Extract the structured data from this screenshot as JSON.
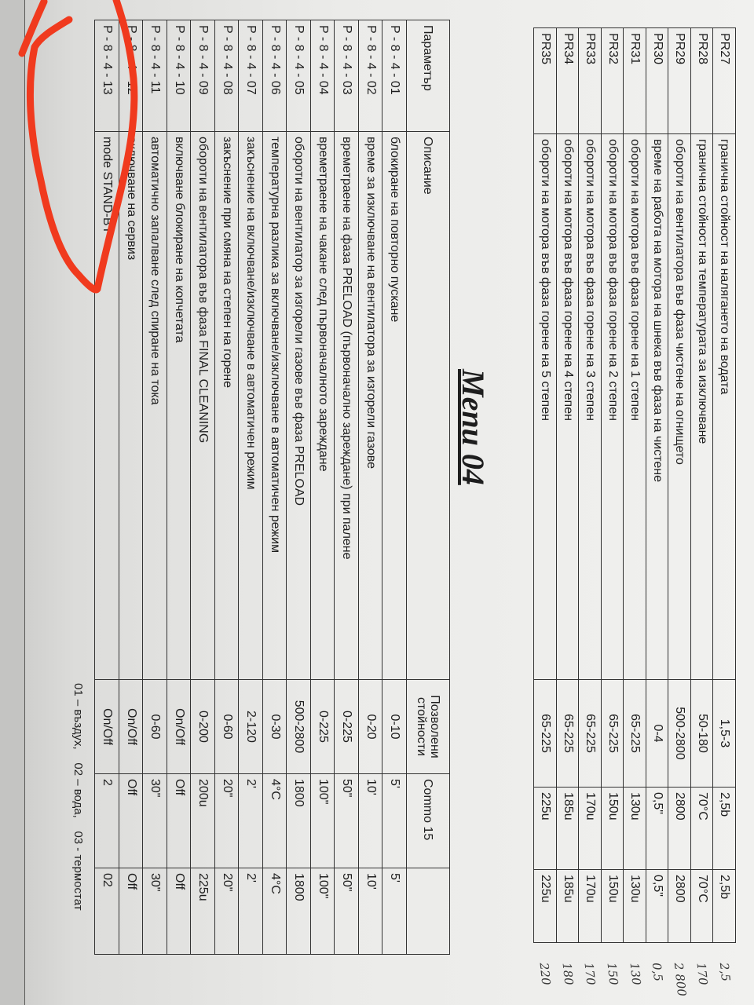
{
  "title": "Menu 04",
  "top_table": {
    "rows": [
      {
        "param": "PR27",
        "description": "гранична стойност на налягането на водата",
        "range": "1,5-3",
        "value1": "2,5b",
        "value2": "2,5b"
      },
      {
        "param": "PR28",
        "description": "гранична стойност на температурата за  изключване",
        "range": "50-180",
        "value1": "70°C",
        "value2": "70°C"
      },
      {
        "param": "PR29",
        "description": "обороти на вентилатора във фаза чистене на огнището",
        "range": "500-2800",
        "value1": "2800",
        "value2": "2800"
      },
      {
        "param": "PR30",
        "description": "време на работа на мотора на шнека във фаза на чистене",
        "range": "0-4",
        "value1": "0,5\"",
        "value2": "0,5\""
      },
      {
        "param": "PR31",
        "description": "обороти на мотора във фаза горене на 1 степен",
        "range": "65-225",
        "value1": "130u",
        "value2": "130u"
      },
      {
        "param": "PR32",
        "description": "обороти на мотора във фаза горене на 2 степен",
        "range": "65-225",
        "value1": "150u",
        "value2": "150u"
      },
      {
        "param": "PR33",
        "description": "обороти на мотора във фаза горене на 3 степен",
        "range": "65-225",
        "value1": "170u",
        "value2": "170u"
      },
      {
        "param": "PR34",
        "description": "обороти на мотора във фаза горене на 4 степен",
        "range": "65-225",
        "value1": "185u",
        "value2": "185u"
      },
      {
        "param": "PR35",
        "description": "обороти на мотора във фаза горене на 5 степен",
        "range": "65-225",
        "value1": "225u",
        "value2": "225u"
      }
    ],
    "handwritten_notes": [
      "2,5",
      "170",
      "2 800",
      "0,5",
      "130",
      "150",
      "170",
      "180",
      "220"
    ]
  },
  "bottom_table": {
    "headers": {
      "param": "Параметър",
      "description": "Описание",
      "allowed": "Позволени стойности",
      "commo": "Commo 15",
      "extra": ""
    },
    "rows": [
      {
        "param": "P - 8 - 4 - 01",
        "description": "блокиране на повторно пускане",
        "allowed": "0-10",
        "commo": "5'",
        "extra": "5'"
      },
      {
        "param": "P - 8 - 4 - 02",
        "description": "време за изключване на вентилатора за изгорели газове",
        "allowed": "0-20",
        "commo": "10'",
        "extra": "10'"
      },
      {
        "param": "P - 8 - 4 - 03",
        "description": "времетраене на фаза PRELOAD (първоначално зареждане) при палене",
        "allowed": "0-225",
        "commo": "50\"",
        "extra": "50\""
      },
      {
        "param": "P - 8 - 4 - 04",
        "description": "времетраене на чакане след първоначалното зареждане",
        "allowed": "0-225",
        "commo": "100\"",
        "extra": "100\""
      },
      {
        "param": "P - 8 - 4 - 05",
        "description": "обороти на вентилатор за изгорели газове във фаза PRELOAD",
        "allowed": "500-2800",
        "commo": "1800",
        "extra": "1800"
      },
      {
        "param": "P - 8 - 4 - 06",
        "description": "температурна разлика за включване/изключване в автоматичен режим",
        "allowed": "0-30",
        "commo": "4°C",
        "extra": "4°C"
      },
      {
        "param": "P - 8 - 4 - 07",
        "description": "закъснение на включване/изключване в автоматичен режим",
        "allowed": "2-120",
        "commo": "2'",
        "extra": "2'"
      },
      {
        "param": "P - 8 - 4 - 08",
        "description": "закъснение при смяна на степен на горене",
        "allowed": "0-60",
        "commo": "20\"",
        "extra": "20\""
      },
      {
        "param": "P - 8 - 4 - 09",
        "description": "обороти на вентилатора във фаза FINAL CLEANING",
        "allowed": "0-200",
        "commo": "200u",
        "extra": "225u"
      },
      {
        "param": "P - 8 - 4 - 10",
        "description": "включване блокиране на копчетата",
        "allowed": "On/Off",
        "commo": "Off",
        "extra": "Off"
      },
      {
        "param": "P - 8 - 4 - 11",
        "description": "автоматично запалване след спиране на тока",
        "allowed": "0-60",
        "commo": "30\"",
        "extra": "30\""
      },
      {
        "param": "P - 8 - 4 - 12",
        "description": "включване на сервиз",
        "allowed": "On/Off",
        "commo": "Off",
        "extra": "Off"
      },
      {
        "param": "P - 8 - 4 - 13",
        "description": "mode STAND-BY",
        "allowed": "On/Off",
        "commo": "2",
        "extra": "02"
      }
    ]
  },
  "footer": "01 – въздух,    02 – вода,    03 - термостат",
  "annotation_color": "#f03a1e"
}
